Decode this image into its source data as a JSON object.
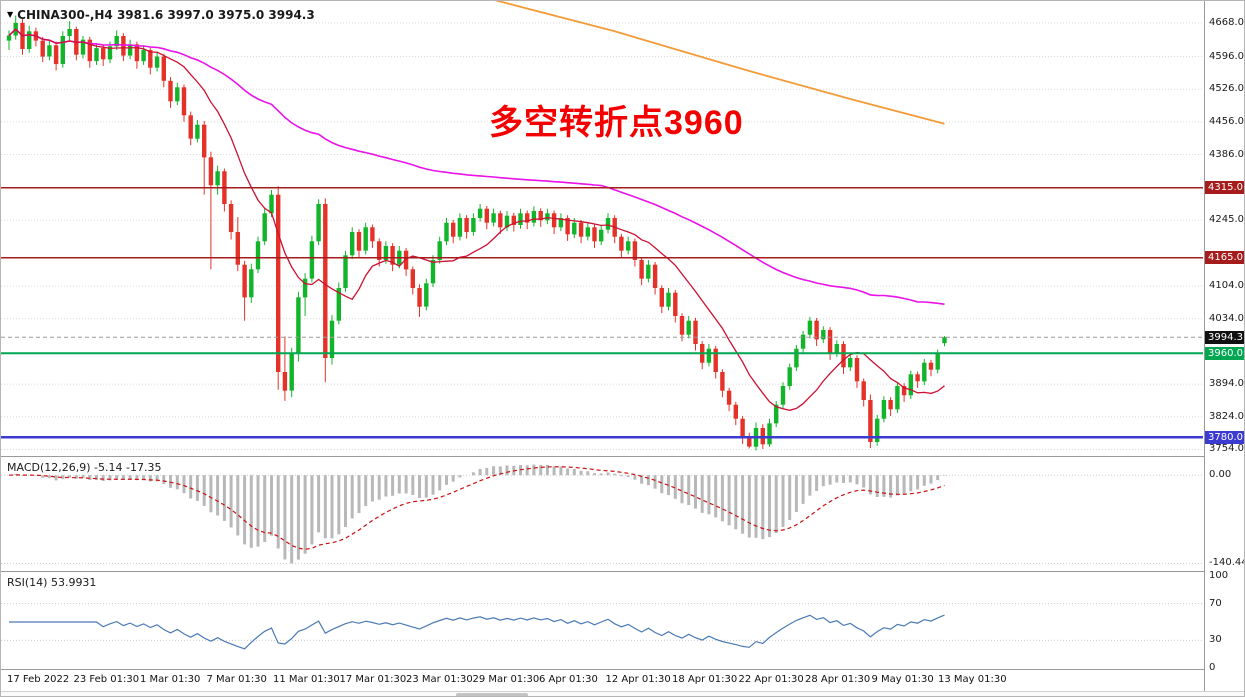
{
  "header": {
    "symbol_line": "CHINA300-,H4 3981.6 3997.0 3975.0 3994.3"
  },
  "annotation": {
    "text": "多空转折点3960",
    "color": "#f40000"
  },
  "indicators": {
    "macd_label": "MACD(12,26,9) -5.14 -17.35",
    "rsi_label": "RSI(14) 53.9931"
  },
  "chart_data": {
    "type": "candlestick",
    "symbol": "CHINA300-",
    "timeframe": "H4",
    "ohlc_current": {
      "open": 3981.6,
      "high": 3997.0,
      "low": 3975.0,
      "close": 3994.3
    },
    "colors": {
      "up": "#12b42a",
      "down": "#e53228",
      "background": "#ffffff"
    },
    "price_axis": {
      "min": 3740,
      "max": 4715,
      "ticks": [
        4668.0,
        4596.0,
        4526.0,
        4456.0,
        4386.0,
        4245.0,
        4104.0,
        4034.0,
        3894.0,
        3824.0,
        3754.0
      ]
    },
    "time_labels": [
      "17 Feb 2022",
      "23 Feb 01:30",
      "1 Mar 01:30",
      "7 Mar 01:30",
      "11 Mar 01:30",
      "17 Mar 01:30",
      "23 Mar 01:30",
      "29 Mar 01:30",
      "6 Apr 01:30",
      "12 Apr 01:30",
      "18 Apr 01:30",
      "22 Apr 01:30",
      "28 Apr 01:30",
      "9 May 01:30",
      "13 May 01:30"
    ],
    "levels": [
      {
        "price": 4315.0,
        "label": "4315.0",
        "line_color": "#a61b1b",
        "badge_bg": "#a61b1b",
        "style": "solid",
        "width": 1.5
      },
      {
        "price": 4165.0,
        "label": "4165.0",
        "line_color": "#a61b1b",
        "badge_bg": "#a61b1b",
        "style": "solid",
        "width": 1.5
      },
      {
        "price": 3994.3,
        "label": "3994.3",
        "line_color": "#9a9a9a",
        "badge_bg": "#111111",
        "style": "dashed",
        "width": 1
      },
      {
        "price": 3960.0,
        "label": "3960.0",
        "line_color": "#00a651",
        "badge_bg": "#00a651",
        "style": "solid",
        "width": 2
      },
      {
        "price": 3780.0,
        "label": "3780.0",
        "line_color": "#3b3bd1",
        "badge_bg": "#3b3bd1",
        "style": "solid",
        "width": 2.5
      }
    ],
    "ma_fast": {
      "color": "#cc1133",
      "period_est": 12
    },
    "ma_slow": {
      "color": "#e912e9",
      "period_est": 89
    },
    "orange_line": {
      "color": "#f29b38",
      "points": [
        [
          70,
          4725
        ],
        [
          90,
          4650
        ],
        [
          110,
          4565
        ],
        [
          125,
          4505
        ],
        [
          139,
          4452
        ]
      ]
    },
    "macd": {
      "fast": 12,
      "slow": 26,
      "signal": 9,
      "value": -5.14,
      "signal_value": -17.35,
      "zero_label": "0.00",
      "bottom_label": "-140.44",
      "hist_color": "#b8b8b8",
      "signal_color": "#cc1111"
    },
    "rsi": {
      "period": 14,
      "value": 53.9931,
      "color": "#4a7ab5",
      "levels": [
        70,
        30
      ],
      "axis_labels": [
        100,
        70,
        30,
        0
      ]
    },
    "candles": [
      [
        4630,
        4652,
        4610,
        4641
      ],
      [
        4641,
        4684,
        4632,
        4668
      ],
      [
        4668,
        4676,
        4600,
        4612
      ],
      [
        4612,
        4662,
        4604,
        4650
      ],
      [
        4650,
        4658,
        4618,
        4630
      ],
      [
        4630,
        4638,
        4584,
        4596
      ],
      [
        4596,
        4630,
        4588,
        4620
      ],
      [
        4620,
        4628,
        4566,
        4580
      ],
      [
        4580,
        4650,
        4572,
        4640
      ],
      [
        4640,
        4672,
        4630,
        4655
      ],
      [
        4655,
        4660,
        4588,
        4600
      ],
      [
        4600,
        4640,
        4592,
        4632
      ],
      [
        4632,
        4638,
        4572,
        4586
      ],
      [
        4586,
        4624,
        4578,
        4614
      ],
      [
        4614,
        4620,
        4576,
        4590
      ],
      [
        4590,
        4628,
        4582,
        4618
      ],
      [
        4618,
        4652,
        4610,
        4640
      ],
      [
        4640,
        4646,
        4586,
        4598
      ],
      [
        4598,
        4632,
        4590,
        4622
      ],
      [
        4622,
        4628,
        4570,
        4586
      ],
      [
        4586,
        4620,
        4578,
        4610
      ],
      [
        4610,
        4616,
        4558,
        4572
      ],
      [
        4572,
        4606,
        4564,
        4596
      ],
      [
        4596,
        4602,
        4530,
        4544
      ],
      [
        4544,
        4552,
        4486,
        4500
      ],
      [
        4500,
        4540,
        4492,
        4530
      ],
      [
        4530,
        4536,
        4456,
        4470
      ],
      [
        4470,
        4478,
        4406,
        4420
      ],
      [
        4420,
        4460,
        4412,
        4450
      ],
      [
        4450,
        4458,
        4300,
        4380
      ],
      [
        4380,
        4392,
        4140,
        4320
      ],
      [
        4320,
        4362,
        4300,
        4350
      ],
      [
        4350,
        4356,
        4264,
        4280
      ],
      [
        4280,
        4288,
        4204,
        4220
      ],
      [
        4220,
        4252,
        4136,
        4150
      ],
      [
        4150,
        4158,
        4030,
        4080
      ],
      [
        4080,
        4152,
        4068,
        4140
      ],
      [
        4140,
        4210,
        4132,
        4200
      ],
      [
        4200,
        4272,
        4192,
        4260
      ],
      [
        4260,
        4310,
        4252,
        4300
      ],
      [
        4300,
        4318,
        3882,
        3920
      ],
      [
        3920,
        3996,
        3858,
        3880
      ],
      [
        3880,
        3972,
        3866,
        3960
      ],
      [
        3960,
        4092,
        3942,
        4080
      ],
      [
        4080,
        4132,
        4040,
        4120
      ],
      [
        4120,
        4212,
        4112,
        4200
      ],
      [
        4200,
        4290,
        4192,
        4280
      ],
      [
        4280,
        4292,
        3898,
        3950
      ],
      [
        3950,
        4042,
        3936,
        4030
      ],
      [
        4030,
        4112,
        4022,
        4100
      ],
      [
        4100,
        4180,
        4092,
        4170
      ],
      [
        4170,
        4230,
        4162,
        4220
      ],
      [
        4220,
        4226,
        4166,
        4180
      ],
      [
        4180,
        4240,
        4172,
        4230
      ],
      [
        4230,
        4236,
        4186,
        4200
      ],
      [
        4200,
        4206,
        4146,
        4160
      ],
      [
        4160,
        4200,
        4152,
        4190
      ],
      [
        4190,
        4196,
        4136,
        4150
      ],
      [
        4150,
        4190,
        4142,
        4180
      ],
      [
        4180,
        4186,
        4126,
        4140
      ],
      [
        4140,
        4146,
        4086,
        4100
      ],
      [
        4100,
        4108,
        4038,
        4060
      ],
      [
        4060,
        4120,
        4052,
        4110
      ],
      [
        4110,
        4170,
        4102,
        4160
      ],
      [
        4160,
        4210,
        4152,
        4200
      ],
      [
        4200,
        4250,
        4192,
        4240
      ],
      [
        4240,
        4246,
        4196,
        4210
      ],
      [
        4210,
        4260,
        4202,
        4250
      ],
      [
        4250,
        4256,
        4206,
        4220
      ],
      [
        4220,
        4260,
        4212,
        4250
      ],
      [
        4250,
        4280,
        4242,
        4270
      ],
      [
        4270,
        4276,
        4226,
        4240
      ],
      [
        4240,
        4270,
        4232,
        4260
      ],
      [
        4260,
        4266,
        4216,
        4230
      ],
      [
        4230,
        4265,
        4222,
        4255
      ],
      [
        4255,
        4261,
        4221,
        4235
      ],
      [
        4235,
        4270,
        4227,
        4260
      ],
      [
        4260,
        4266,
        4226,
        4240
      ],
      [
        4240,
        4275,
        4232,
        4265
      ],
      [
        4265,
        4271,
        4231,
        4245
      ],
      [
        4245,
        4270,
        4237,
        4260
      ],
      [
        4260,
        4266,
        4216,
        4230
      ],
      [
        4230,
        4260,
        4222,
        4250
      ],
      [
        4250,
        4256,
        4201,
        4215
      ],
      [
        4215,
        4250,
        4207,
        4240
      ],
      [
        4240,
        4246,
        4196,
        4210
      ],
      [
        4210,
        4240,
        4202,
        4230
      ],
      [
        4230,
        4236,
        4186,
        4200
      ],
      [
        4200,
        4235,
        4192,
        4225
      ],
      [
        4225,
        4260,
        4217,
        4250
      ],
      [
        4250,
        4256,
        4196,
        4210
      ],
      [
        4210,
        4216,
        4166,
        4180
      ],
      [
        4180,
        4210,
        4172,
        4200
      ],
      [
        4200,
        4206,
        4146,
        4160
      ],
      [
        4160,
        4166,
        4106,
        4120
      ],
      [
        4120,
        4160,
        4112,
        4150
      ],
      [
        4150,
        4156,
        4086,
        4100
      ],
      [
        4100,
        4106,
        4046,
        4060
      ],
      [
        4060,
        4100,
        4052,
        4090
      ],
      [
        4090,
        4096,
        4026,
        4040
      ],
      [
        4040,
        4046,
        3986,
        4000
      ],
      [
        4000,
        4040,
        3992,
        4030
      ],
      [
        4030,
        4036,
        3966,
        3980
      ],
      [
        3980,
        3986,
        3926,
        3940
      ],
      [
        3940,
        3980,
        3932,
        3970
      ],
      [
        3970,
        3976,
        3906,
        3920
      ],
      [
        3920,
        3926,
        3866,
        3880
      ],
      [
        3880,
        3886,
        3836,
        3850
      ],
      [
        3850,
        3856,
        3806,
        3820
      ],
      [
        3820,
        3826,
        3766,
        3780
      ],
      [
        3780,
        3790,
        3756,
        3760
      ],
      [
        3760,
        3812,
        3752,
        3800
      ],
      [
        3800,
        3808,
        3755,
        3765
      ],
      [
        3765,
        3820,
        3760,
        3810
      ],
      [
        3810,
        3858,
        3802,
        3850
      ],
      [
        3850,
        3898,
        3842,
        3890
      ],
      [
        3890,
        3938,
        3882,
        3930
      ],
      [
        3930,
        3978,
        3922,
        3970
      ],
      [
        3970,
        4008,
        3962,
        4000
      ],
      [
        4000,
        4038,
        3992,
        4030
      ],
      [
        4030,
        4036,
        3976,
        3990
      ],
      [
        3990,
        4018,
        3982,
        4010
      ],
      [
        4010,
        4016,
        3946,
        3960
      ],
      [
        3960,
        3988,
        3952,
        3980
      ],
      [
        3980,
        3986,
        3916,
        3930
      ],
      [
        3930,
        3958,
        3922,
        3950
      ],
      [
        3950,
        3956,
        3886,
        3900
      ],
      [
        3900,
        3906,
        3846,
        3860
      ],
      [
        3860,
        3872,
        3757,
        3770
      ],
      [
        3770,
        3828,
        3762,
        3820
      ],
      [
        3820,
        3868,
        3812,
        3860
      ],
      [
        3860,
        3866,
        3826,
        3840
      ],
      [
        3840,
        3898,
        3832,
        3890
      ],
      [
        3890,
        3896,
        3856,
        3870
      ],
      [
        3870,
        3923,
        3862,
        3915
      ],
      [
        3915,
        3921,
        3886,
        3900
      ],
      [
        3900,
        3948,
        3892,
        3940
      ],
      [
        3940,
        3946,
        3911,
        3925
      ],
      [
        3925,
        3968,
        3917,
        3960
      ],
      [
        3981.6,
        3997.0,
        3975.0,
        3994.3
      ]
    ]
  }
}
